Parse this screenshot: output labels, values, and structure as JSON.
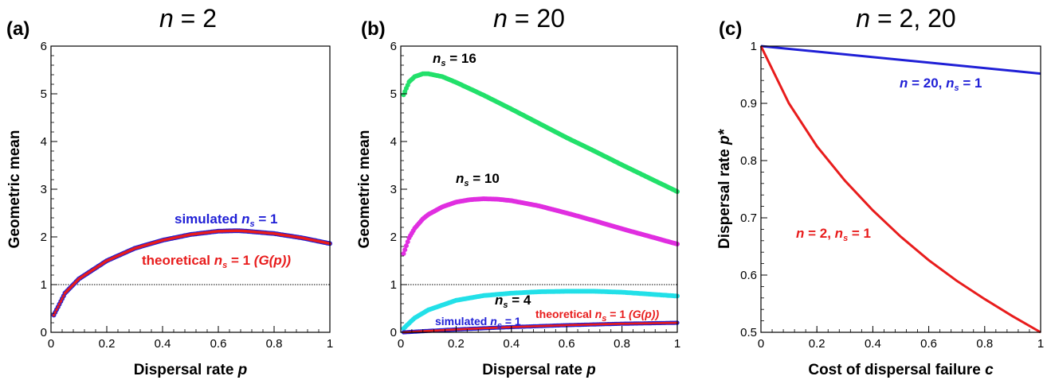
{
  "chart_data": [
    {
      "type": "scatter",
      "panel_label": "(a)",
      "title_var": "n",
      "title_rest": " = 2",
      "xlabel": "Dispersal rate",
      "xlabel_var": "p",
      "ylabel": "Geometric mean",
      "xlim": [
        0,
        1
      ],
      "ylim": [
        0,
        6
      ],
      "xticks": [
        "0",
        "0.2",
        "0.4",
        "0.6",
        "0.8",
        "1"
      ],
      "yticks": [
        "0",
        "1",
        "2",
        "3",
        "4",
        "5",
        "6"
      ],
      "reference_line": 1,
      "series": [
        {
          "name": "simulated ns = 1",
          "color": "#1f1fd6",
          "x": [
            0.01,
            0.05,
            0.1,
            0.2,
            0.3,
            0.4,
            0.5,
            0.6,
            0.667,
            0.7,
            0.8,
            0.9,
            1.0
          ],
          "values": [
            0.36,
            0.82,
            1.12,
            1.5,
            1.76,
            1.93,
            2.05,
            2.12,
            2.13,
            2.12,
            2.07,
            1.98,
            1.86
          ]
        },
        {
          "name": "theoretical ns = 1 (G(p))",
          "color": "#e81c1c",
          "x": [
            0.01,
            0.05,
            0.1,
            0.2,
            0.3,
            0.4,
            0.5,
            0.6,
            0.667,
            0.7,
            0.8,
            0.9,
            1.0
          ],
          "values": [
            0.36,
            0.82,
            1.12,
            1.5,
            1.76,
            1.93,
            2.05,
            2.12,
            2.13,
            2.12,
            2.07,
            1.98,
            1.86
          ]
        }
      ],
      "annotations": [
        {
          "pre": "simulated ",
          "var": "n",
          "sub": "s",
          "post": " = 1",
          "color": "#1f1fd6"
        },
        {
          "pre": "theoretical ",
          "var": "n",
          "sub": "s",
          "post": " = 1  ",
          "extra": "(G(p))",
          "color": "#e81c1c"
        }
      ]
    },
    {
      "type": "scatter",
      "panel_label": "(b)",
      "title_var": "n",
      "title_rest": " = 20",
      "xlabel": "Dispersal rate",
      "xlabel_var": "p",
      "ylabel": "Geometric mean",
      "xlim": [
        0,
        1
      ],
      "ylim": [
        0,
        6
      ],
      "xticks": [
        "0",
        "0.2",
        "0.4",
        "0.6",
        "0.8",
        "1"
      ],
      "yticks": [
        "0",
        "1",
        "2",
        "3",
        "4",
        "5",
        "6"
      ],
      "reference_line": 1,
      "series": [
        {
          "name": "ns = 16",
          "color": "#22e06a",
          "x": [
            0.01,
            0.03,
            0.05,
            0.08,
            0.1,
            0.15,
            0.2,
            0.3,
            0.4,
            0.5,
            0.6,
            0.7,
            0.8,
            0.9,
            1.0
          ],
          "values": [
            4.98,
            5.25,
            5.36,
            5.42,
            5.42,
            5.36,
            5.24,
            4.97,
            4.68,
            4.38,
            4.08,
            3.8,
            3.51,
            3.23,
            2.95
          ]
        },
        {
          "name": "ns = 10",
          "color": "#e02ee0",
          "x": [
            0.01,
            0.03,
            0.05,
            0.08,
            0.1,
            0.15,
            0.2,
            0.25,
            0.3,
            0.35,
            0.4,
            0.5,
            0.6,
            0.7,
            0.8,
            0.9,
            1.0
          ],
          "values": [
            1.65,
            1.98,
            2.18,
            2.38,
            2.47,
            2.63,
            2.73,
            2.78,
            2.8,
            2.79,
            2.76,
            2.65,
            2.5,
            2.34,
            2.17,
            2.01,
            1.85
          ]
        },
        {
          "name": "ns = 4",
          "color": "#22e0e8",
          "x": [
            0.01,
            0.05,
            0.1,
            0.2,
            0.3,
            0.4,
            0.5,
            0.6,
            0.7,
            0.8,
            0.9,
            1.0
          ],
          "values": [
            0.08,
            0.3,
            0.47,
            0.67,
            0.77,
            0.82,
            0.85,
            0.86,
            0.86,
            0.84,
            0.8,
            0.76
          ]
        },
        {
          "name": "simulated ns = 1",
          "color": "#1f1fd6",
          "x": [
            0.01,
            0.1,
            0.2,
            0.4,
            0.6,
            0.8,
            1.0
          ],
          "values": [
            0.0,
            0.03,
            0.06,
            0.11,
            0.15,
            0.18,
            0.2
          ]
        },
        {
          "name": "theoretical ns = 1 (G(p))",
          "color": "#e81c1c",
          "x": [
            0.01,
            0.1,
            0.2,
            0.4,
            0.6,
            0.8,
            1.0
          ],
          "values": [
            0.0,
            0.03,
            0.06,
            0.11,
            0.15,
            0.18,
            0.2
          ]
        }
      ],
      "annotations": [
        {
          "pre": "",
          "var": "n",
          "sub": "s",
          "post": " = 16",
          "color": "#000000"
        },
        {
          "pre": "",
          "var": "n",
          "sub": "s",
          "post": " = 10",
          "color": "#000000"
        },
        {
          "pre": "",
          "var": "n",
          "sub": "s",
          "post": " = 4",
          "color": "#000000"
        },
        {
          "pre": "simulated ",
          "var": "n",
          "sub": "s",
          "post": " = 1",
          "color": "#1f1fd6"
        },
        {
          "pre": "theoretical ",
          "var": "n",
          "sub": "s",
          "post": " = 1  ",
          "extra": "(G(p))",
          "color": "#e81c1c"
        }
      ]
    },
    {
      "type": "line",
      "panel_label": "(c)",
      "title_var": "n",
      "title_rest": " = 2, 20",
      "xlabel": "Cost of dispersal failure",
      "xlabel_var": "c",
      "ylabel": "Dispersal rate",
      "ylabel_var": "p*",
      "xlim": [
        0,
        1
      ],
      "ylim": [
        0.5,
        1
      ],
      "xticks": [
        "0",
        "0.2",
        "0.4",
        "0.6",
        "0.8",
        "1"
      ],
      "yticks": [
        "0.5",
        "0.6",
        "0.7",
        "0.8",
        "0.9",
        "1"
      ],
      "series": [
        {
          "name": "n = 20, ns = 1",
          "color": "#1f1fd6",
          "x": [
            0,
            1
          ],
          "values": [
            1.0,
            0.952
          ]
        },
        {
          "name": "n = 2, ns = 1",
          "color": "#e81c1c",
          "x": [
            0,
            0.1,
            0.2,
            0.3,
            0.4,
            0.5,
            0.6,
            0.7,
            0.8,
            0.9,
            1.0
          ],
          "values": [
            1.0,
            0.9,
            0.825,
            0.765,
            0.713,
            0.667,
            0.626,
            0.59,
            0.558,
            0.528,
            0.5
          ]
        }
      ],
      "annotations": [
        {
          "var": "n",
          "mid": " = 20, ",
          "var2": "n",
          "sub": "s",
          "post": " = 1",
          "color": "#1f1fd6"
        },
        {
          "var": "n",
          "mid": " = 2, ",
          "var2": "n",
          "sub": "s",
          "post": " = 1",
          "color": "#e81c1c"
        }
      ]
    }
  ]
}
